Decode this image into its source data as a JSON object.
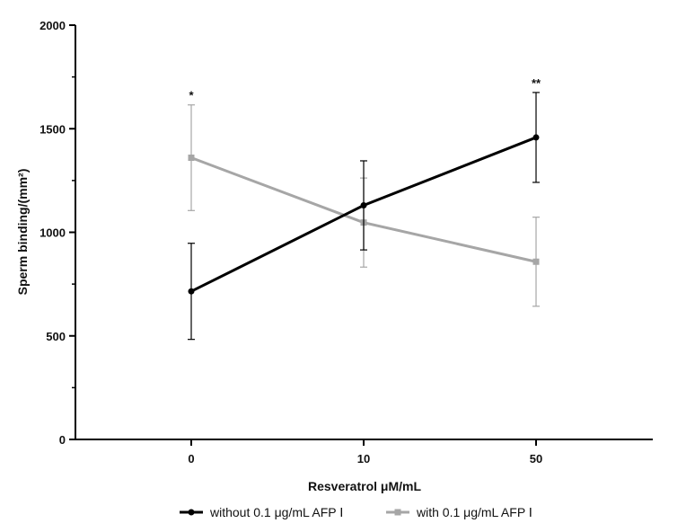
{
  "chart_data": {
    "type": "line",
    "xlabel": "Resveratrol μM/mL",
    "ylabel": "Sperm binding/(mm²)",
    "categories": [
      "0",
      "10",
      "50"
    ],
    "ylim": [
      0,
      2000
    ],
    "yticks": [
      0,
      500,
      1000,
      1500,
      2000
    ],
    "grid": false,
    "legend_position": "bottom",
    "series": [
      {
        "name": "without 0.1 μg/mL AFP Ⅰ",
        "color": "#000000",
        "marker": "circle",
        "values": [
          715,
          1130,
          1458
        ],
        "errors": [
          232,
          215,
          217
        ]
      },
      {
        "name": "with 0.1 μg/mL AFP Ⅰ",
        "color": "#a6a6a6",
        "marker": "square",
        "values": [
          1360,
          1047,
          858
        ],
        "errors": [
          255,
          215,
          215
        ]
      }
    ],
    "annotations": [
      {
        "category": "0",
        "text": "*"
      },
      {
        "category": "50",
        "text": "**"
      }
    ]
  }
}
